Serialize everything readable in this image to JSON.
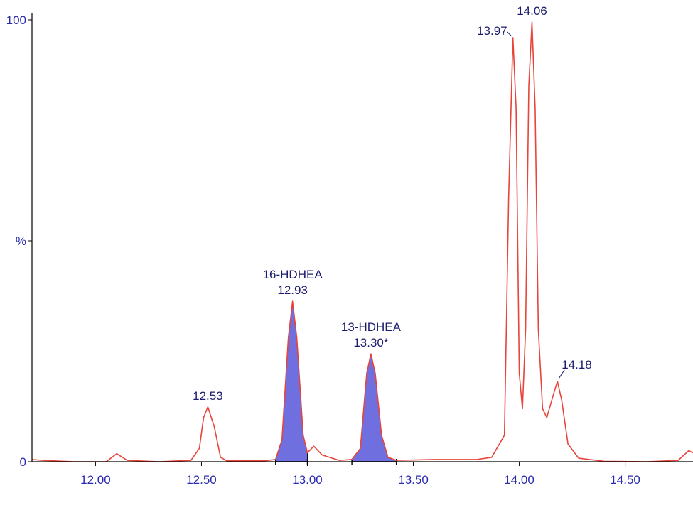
{
  "chart_data": {
    "type": "line",
    "color": "#e8443a",
    "x": [
      11.7,
      11.75,
      11.9,
      12.05,
      12.1,
      12.15,
      12.3,
      12.45,
      12.49,
      12.51,
      12.53,
      12.56,
      12.59,
      12.62,
      12.8,
      12.85,
      12.88,
      12.91,
      12.93,
      12.95,
      12.98,
      13.0,
      13.03,
      13.07,
      13.15,
      13.21,
      13.25,
      13.28,
      13.3,
      13.32,
      13.35,
      13.38,
      13.42,
      13.6,
      13.8,
      13.87,
      13.9,
      13.93,
      13.95,
      13.97,
      13.985,
      14.0,
      14.015,
      14.03,
      14.045,
      14.06,
      14.075,
      14.09,
      14.11,
      14.13,
      14.16,
      14.18,
      14.2,
      14.23,
      14.28,
      14.4,
      14.6,
      14.75,
      14.8,
      14.82
    ],
    "values": [
      0.5,
      0.3,
      0,
      0,
      1.8,
      0.3,
      0,
      0.3,
      3,
      10,
      12.4,
      8,
      1,
      0.2,
      0.2,
      0.5,
      5,
      28,
      36.3,
      28,
      6,
      2,
      3.5,
      1.5,
      0.3,
      0.5,
      3,
      20,
      24.4,
      20,
      6,
      1,
      0.3,
      0.5,
      0.5,
      1,
      3.5,
      6,
      60,
      96,
      80,
      20,
      12,
      30,
      85,
      99.5,
      80,
      30,
      12,
      10,
      15,
      18.2,
      14,
      4,
      0.8,
      0.1,
      0,
      0.3,
      2.5,
      2
    ],
    "shaded": [
      {
        "from": 12.85,
        "to": 13.0
      },
      {
        "from": 13.21,
        "to": 13.42
      }
    ],
    "shade_color": "#6f6fe0",
    "annotations": [
      {
        "text": "12.53",
        "x": 12.53,
        "y": 12.4
      },
      {
        "name": "16-HDHEA",
        "text": "12.93",
        "x": 12.93,
        "y": 36.3
      },
      {
        "name": "13-HDHEA",
        "text": "13.30*",
        "x": 13.3,
        "y": 24.4
      },
      {
        "text": "13.97",
        "x": 13.97,
        "y": 96
      },
      {
        "text": "14.06",
        "x": 14.06,
        "y": 99.5
      },
      {
        "text": "14.18",
        "x": 14.18,
        "y": 18.2
      }
    ],
    "xlim": [
      11.7,
      14.82
    ],
    "ylim": [
      0,
      100
    ],
    "xticks": [
      {
        "value": 12,
        "label": "12.00"
      },
      {
        "value": 12.5,
        "label": "12.50"
      },
      {
        "value": 13,
        "label": "13.00"
      },
      {
        "value": 13.5,
        "label": "13.50"
      },
      {
        "value": 14,
        "label": "14.00"
      },
      {
        "value": 14.5,
        "label": "14.50"
      }
    ],
    "yticks": [
      0,
      {
        "value": 50,
        "label": "%"
      },
      100
    ]
  }
}
